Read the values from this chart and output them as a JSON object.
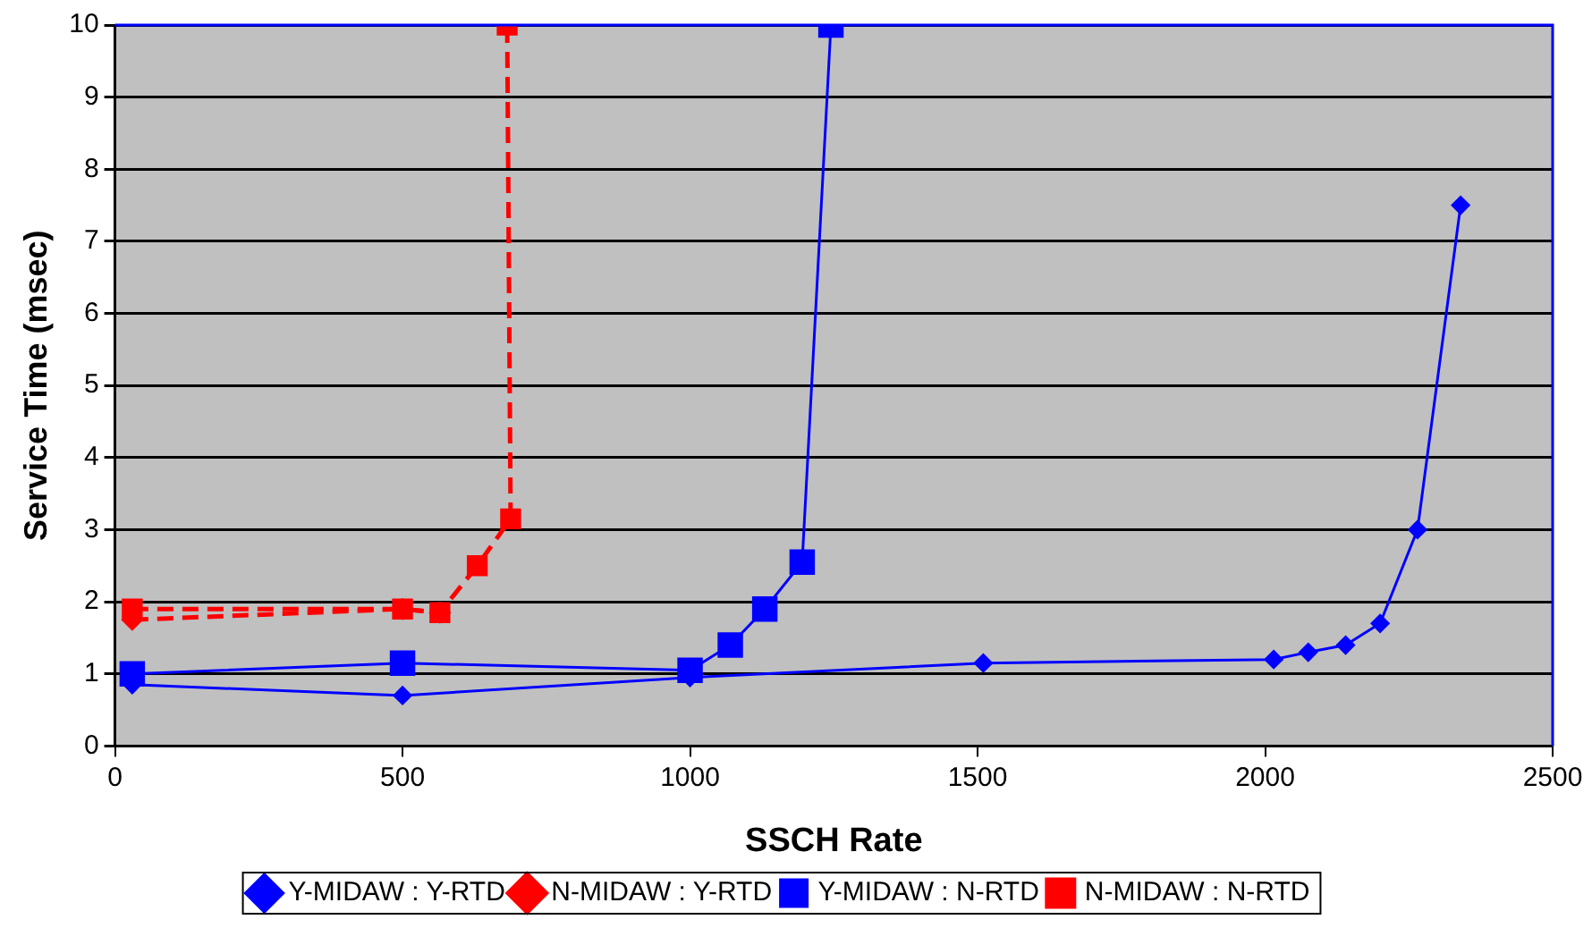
{
  "chart_data": {
    "type": "line",
    "xlabel": "SSCH Rate",
    "ylabel": "Service Time (msec)",
    "xlim": [
      0,
      2500
    ],
    "xticks": [
      0,
      500,
      1000,
      1500,
      2000,
      2500
    ],
    "ylim": [
      0,
      10
    ],
    "yticks": [
      0,
      1,
      2,
      3,
      4,
      5,
      6,
      7,
      8,
      9,
      10
    ],
    "grid": "y",
    "legend": "bottom",
    "series": [
      {
        "name": "Y-MIDAW : Y-RTD",
        "color": "#0000ff",
        "marker": "diamond",
        "line_style": "solid",
        "x": [
          30,
          500,
          1000,
          1510,
          2015,
          2075,
          2140,
          2200,
          2265,
          2340
        ],
        "values": [
          0.85,
          0.7,
          0.95,
          1.15,
          1.2,
          1.3,
          1.4,
          1.7,
          3.0,
          7.5
        ]
      },
      {
        "name": "N-MIDAW : Y-RTD",
        "color": "#ff0000",
        "marker": "diamond",
        "line_style": "dashed",
        "x": [
          30,
          500,
          565
        ],
        "values": [
          1.75,
          1.9,
          1.85
        ]
      },
      {
        "name": "Y-MIDAW : N-RTD",
        "color": "#0000ff",
        "marker": "square",
        "line_style": "solid",
        "x": [
          30,
          500,
          1000,
          1070,
          1130,
          1195,
          1245
        ],
        "values": [
          1.0,
          1.15,
          1.05,
          1.4,
          1.9,
          2.55,
          10
        ]
      },
      {
        "name": "N-MIDAW : N-RTD",
        "color": "#ff0000",
        "marker": "square",
        "line_style": "dashed",
        "x": [
          30,
          500,
          565,
          630,
          688,
          682
        ],
        "values": [
          1.9,
          1.9,
          1.85,
          2.5,
          3.15,
          10
        ]
      }
    ]
  }
}
